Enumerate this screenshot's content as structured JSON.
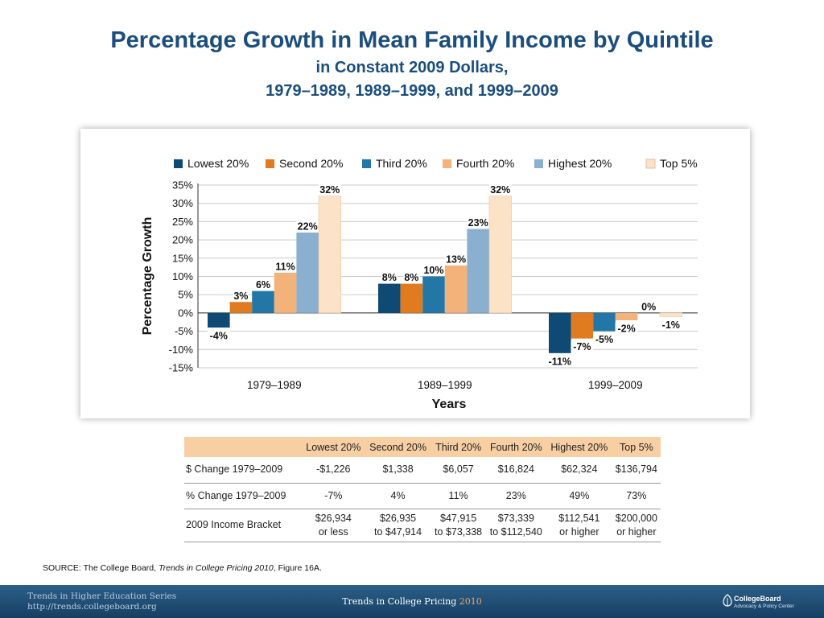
{
  "title": "Percentage Growth in Mean Family Income by Quintile",
  "subtitle1": "in Constant 2009 Dollars,",
  "subtitle2": "1979–1989, 1989–1999, and 1999–2009",
  "chart_data": {
    "type": "bar",
    "categories": [
      "1979–1989",
      "1989–1999",
      "1999–2009"
    ],
    "series": [
      {
        "name": "Lowest 20%",
        "color": "#0e4a74",
        "values": [
          -4,
          8,
          -11
        ],
        "labels": [
          "-4%",
          "8%",
          "-11%"
        ]
      },
      {
        "name": "Second 20%",
        "color": "#e07b1f",
        "values": [
          3,
          8,
          -7
        ],
        "labels": [
          "3%",
          "8%",
          "-7%"
        ]
      },
      {
        "name": "Third 20%",
        "color": "#2277a6",
        "values": [
          6,
          10,
          -5
        ],
        "labels": [
          "6%",
          "10%",
          "-5%"
        ]
      },
      {
        "name": "Fourth 20%",
        "color": "#f2b27a",
        "values": [
          11,
          13,
          -2
        ],
        "labels": [
          "11%",
          "13%",
          "-2%"
        ]
      },
      {
        "name": "Highest 20%",
        "color": "#8aafcf",
        "values": [
          22,
          23,
          0
        ],
        "labels": [
          "22%",
          "23%",
          "0%"
        ]
      },
      {
        "name": "Top 5%",
        "color": "#fce2c7",
        "values": [
          32,
          32,
          -1
        ],
        "labels": [
          "32%",
          "32%",
          "-1%"
        ]
      }
    ],
    "yticks": [
      35,
      30,
      25,
      20,
      15,
      10,
      5,
      0,
      -5,
      -10,
      -15
    ],
    "ytick_labels": [
      "35%",
      "30%",
      "25%",
      "20%",
      "15%",
      "10%",
      "5%",
      "0%",
      "-5%",
      "-10%",
      "-15%"
    ],
    "ylim": [
      -15,
      35
    ],
    "xlabel": "Years",
    "ylabel": "Percentage Growth",
    "legend": "top",
    "grid": true
  },
  "table": {
    "headers": [
      "",
      "Lowest 20%",
      "Second 20%",
      "Third 20%",
      "Fourth 20%",
      "Highest 20%",
      "Top 5%"
    ],
    "rows": [
      {
        "label": "$ Change 1979–2009",
        "cells": [
          [
            "-$1,226"
          ],
          [
            "$1,338"
          ],
          [
            "$6,057"
          ],
          [
            "$16,824"
          ],
          [
            "$62,324"
          ],
          [
            "$136,794"
          ]
        ]
      },
      {
        "label": "% Change 1979–2009",
        "cells": [
          [
            "-7%"
          ],
          [
            "4%"
          ],
          [
            "11%"
          ],
          [
            "23%"
          ],
          [
            "49%"
          ],
          [
            "73%"
          ]
        ]
      },
      {
        "label": "2009 Income Bracket",
        "cells": [
          [
            "$26,934",
            "or less"
          ],
          [
            "$26,935",
            "to $47,914"
          ],
          [
            "$47,915",
            "to $73,338"
          ],
          [
            "$73,339",
            "to $112,540"
          ],
          [
            "$112,541",
            "or higher"
          ],
          [
            "$200,000",
            "or higher"
          ]
        ]
      }
    ]
  },
  "source": {
    "prefix": "SOURCE: The College Board, ",
    "publication": "Trends in College Pricing 2010",
    "suffix": ", Figure 16A."
  },
  "footer": {
    "series_line1": "Trends in Higher Education Series",
    "series_line2": "http://trends.collegeboard.org",
    "center_text": "Trends in College Pricing ",
    "center_year": "2010",
    "logo_name": "CollegeBoard",
    "logo_sub": "Advocacy & Policy Center"
  }
}
